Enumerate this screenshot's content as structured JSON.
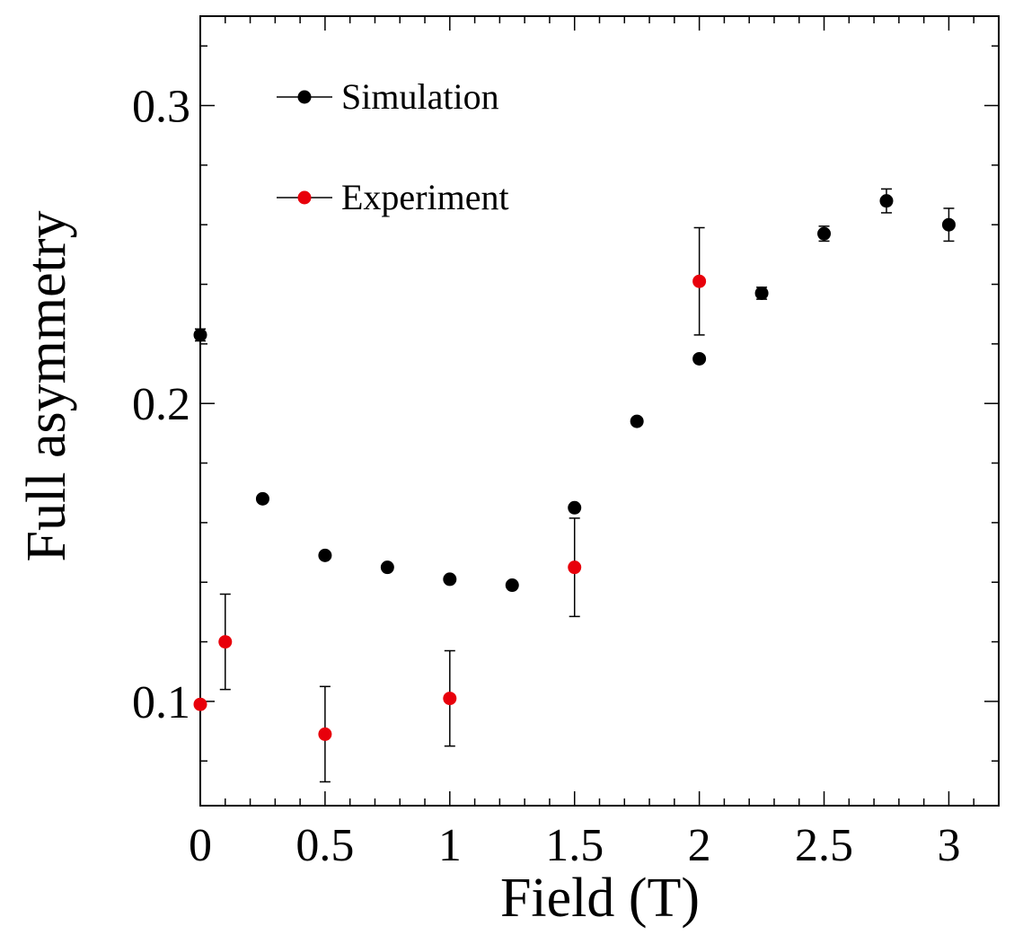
{
  "chart_data": {
    "type": "scatter",
    "xlabel": "Field (T)",
    "ylabel": "Full asymmetry",
    "xlim": [
      0,
      3.2
    ],
    "ylim": [
      0.065,
      0.33
    ],
    "x_ticks": [
      "0",
      "0.5",
      "1",
      "1.5",
      "2",
      "2.5",
      "3"
    ],
    "y_ticks": [
      "0.1",
      "0.2",
      "0.3"
    ],
    "legend_position": "top-left",
    "series": [
      {
        "name": "Simulation",
        "color": "#000000",
        "points": [
          {
            "x": 0,
            "y": 0.223,
            "err": 0.002
          },
          {
            "x": 0.25,
            "y": 0.168,
            "err": 0
          },
          {
            "x": 0.5,
            "y": 0.149,
            "err": 0
          },
          {
            "x": 0.75,
            "y": 0.145,
            "err": 0
          },
          {
            "x": 1.0,
            "y": 0.141,
            "err": 0
          },
          {
            "x": 1.25,
            "y": 0.139,
            "err": 0
          },
          {
            "x": 1.5,
            "y": 0.165,
            "err": 0
          },
          {
            "x": 1.75,
            "y": 0.194,
            "err": 0
          },
          {
            "x": 2.0,
            "y": 0.215,
            "err": 0
          },
          {
            "x": 2.25,
            "y": 0.237,
            "err": 0.002
          },
          {
            "x": 2.5,
            "y": 0.257,
            "err": 0.0025
          },
          {
            "x": 2.75,
            "y": 0.268,
            "err": 0.004
          },
          {
            "x": 3.0,
            "y": 0.26,
            "err": 0.0055
          }
        ]
      },
      {
        "name": "Experiment",
        "color": "#e8000b",
        "points": [
          {
            "x": 0,
            "y": 0.099,
            "err": 0
          },
          {
            "x": 0.1,
            "y": 0.12,
            "err": 0.016
          },
          {
            "x": 0.5,
            "y": 0.089,
            "err": 0.016
          },
          {
            "x": 1.0,
            "y": 0.101,
            "err": 0.016
          },
          {
            "x": 1.5,
            "y": 0.145,
            "err": 0.0165
          },
          {
            "x": 2.0,
            "y": 0.241,
            "err": 0.018
          }
        ]
      }
    ]
  }
}
